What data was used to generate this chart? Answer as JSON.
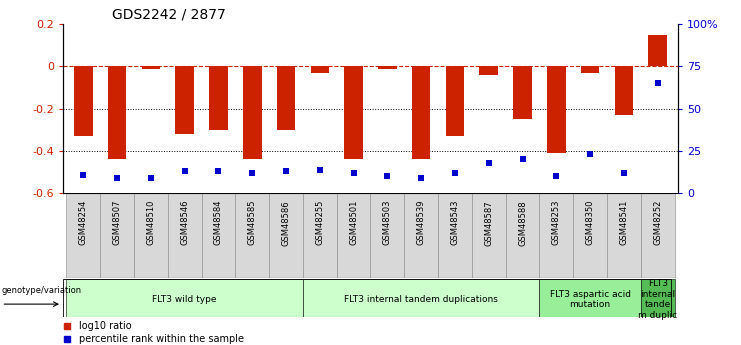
{
  "title": "GDS2242 / 2877",
  "samples": [
    "GSM48254",
    "GSM48507",
    "GSM48510",
    "GSM48546",
    "GSM48584",
    "GSM48585",
    "GSM48586",
    "GSM48255",
    "GSM48501",
    "GSM48503",
    "GSM48539",
    "GSM48543",
    "GSM48587",
    "GSM48588",
    "GSM48253",
    "GSM48350",
    "GSM48541",
    "GSM48252"
  ],
  "log10_ratio": [
    -0.33,
    -0.44,
    -0.01,
    -0.32,
    -0.3,
    -0.44,
    -0.3,
    -0.03,
    -0.44,
    -0.01,
    -0.44,
    -0.33,
    -0.04,
    -0.25,
    -0.41,
    -0.03,
    -0.23,
    0.15
  ],
  "percentile_rank": [
    11,
    9,
    9,
    13,
    13,
    12,
    13,
    14,
    12,
    10,
    9,
    12,
    18,
    20,
    10,
    23,
    12,
    65
  ],
  "ylim_left": [
    -0.6,
    0.2
  ],
  "ylim_right": [
    0,
    100
  ],
  "groups": [
    {
      "label": "FLT3 wild type",
      "start": 0,
      "end": 6,
      "color": "#ccffcc"
    },
    {
      "label": "FLT3 internal tandem duplications",
      "start": 7,
      "end": 13,
      "color": "#ccffcc"
    },
    {
      "label": "FLT3 aspartic acid\nmutation",
      "start": 14,
      "end": 16,
      "color": "#99ee99"
    },
    {
      "label": "FLT3\ninternal\ntande\nm duplic",
      "start": 17,
      "end": 17,
      "color": "#55bb55"
    }
  ],
  "bar_color": "#cc2200",
  "dot_color": "#0000cc",
  "hline_color": "#cc2200",
  "dotline_color": "#000000",
  "legend_red": "log10 ratio",
  "legend_blue": "percentile rank within the sample",
  "geno_label": "genotype/variation"
}
